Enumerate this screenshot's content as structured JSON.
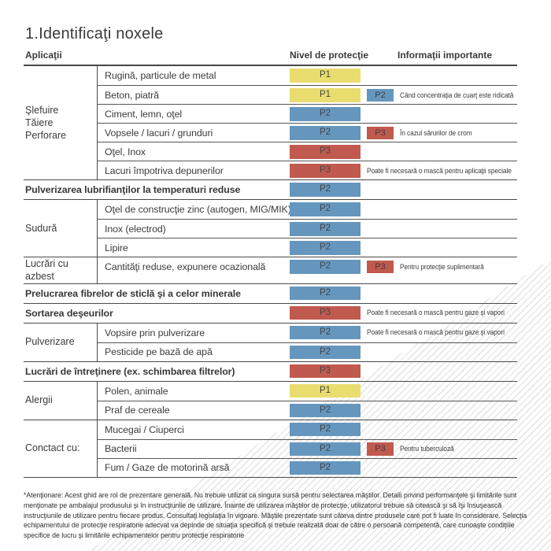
{
  "title": "1.Identificaţi noxele",
  "columns": {
    "applications": "Aplicaţii",
    "protection_level": "Nivel de protecţie",
    "important_info": "Informaţii importante"
  },
  "level_colors": {
    "P1": "#e9dd70",
    "P2": "#6596be",
    "P3": "#c15a4e"
  },
  "sections": [
    {
      "category": "Şlefuire\nTăiere\nPerforare",
      "rows": [
        {
          "label": "Rugină, particule de metal",
          "level": "P1"
        },
        {
          "label": "Beton, piatră",
          "level": "P1",
          "level2": "P2",
          "note": "Când concentraţia de cuarţ este ridicată"
        },
        {
          "label": "Ciment, lemn, oţel",
          "level": "P2"
        },
        {
          "label": "Vopsele / lacuri / grunduri",
          "level": "P2",
          "level2": "P3",
          "note": "În cazul sărurilor de crom"
        },
        {
          "label": "Oţel, Inox",
          "level": "P3"
        },
        {
          "label": "Lacuri împotriva depunerilor",
          "level": "P3",
          "note": "Poate fi necesară o mască pentru aplicaţii speciale"
        }
      ]
    },
    {
      "label": "Pulverizarea lubrifianţilor la temperaturi reduse",
      "level": "P2"
    },
    {
      "category": "Sudură",
      "rows": [
        {
          "label": "Oţel de construcţie zinc (autogen, MIG/MIK)",
          "level": "P2"
        },
        {
          "label": "Inox (electrod)",
          "level": "P2"
        },
        {
          "label": "Lipire",
          "level": "P2"
        }
      ]
    },
    {
      "category": "Lucrări cu azbest",
      "rows": [
        {
          "label": "Cantităţi reduse, expunere ocazională",
          "level": "P2",
          "level2": "P3",
          "note": "Pentru protecţie suplimentară"
        }
      ]
    },
    {
      "label": "Prelucrarea fibrelor de sticlă şi a celor minerale",
      "level": "P2"
    },
    {
      "label": "Sortarea deşeurilor",
      "level": "P3",
      "note": "Poate fi necesară o mască pentru gaze şi vapori"
    },
    {
      "category": "Pulverizare",
      "rows": [
        {
          "label": "Vopsire prin pulverizare",
          "level": "P2",
          "note": "Poate fi necesară o mască pentru gaze şi vapori"
        },
        {
          "label": "Pesticide pe bază de apă",
          "level": "P2"
        }
      ]
    },
    {
      "label": "Lucrări de întreţinere (ex. schimbarea filtrelor)",
      "level": "P3"
    },
    {
      "category": "Alergii",
      "rows": [
        {
          "label": "Polen, animale",
          "level": "P1"
        },
        {
          "label": "Praf de cereale",
          "level": "P2"
        }
      ]
    },
    {
      "category": "Conctact cu:",
      "rows": [
        {
          "label": "Mucegai / Ciuperci",
          "level": "P2"
        },
        {
          "label": "Bacterii",
          "level": "P2",
          "level2": "P3",
          "note": "Pentru tuberculoză"
        },
        {
          "label": "Fum / Gaze de motorină arsă",
          "level": "P2"
        }
      ]
    }
  ],
  "footnote": "*Atenţionare: Acest ghid are rol de prezentare generală. Nu trebuie utilizat ca singura sursă pentru selectarea măştilor. Detalii privind performanţele şi limitările sunt menţionate pe ambalajul produsului şi în instrucţiunile de utilizare. Înainte de utilizarea măştilor de protecţie, utilizatorul trebuie să citească şi să îşi însuşească instrucţiunile de utilizare pentru fiecare produs. Consultaţi legislaţia în vigoare. Măştile prezentate sunt câteva dintre produsele care pot fi luate în considerare. Selecţia echipamentului de protecţie respiratorie adecvat va depinde de situaţia specifică şi trebuie realizată doar de către o persoană competentă, care cunoaşte condiţiile specifice de lucru şi limitările echipamentelor pentru protecţie respiratorie"
}
